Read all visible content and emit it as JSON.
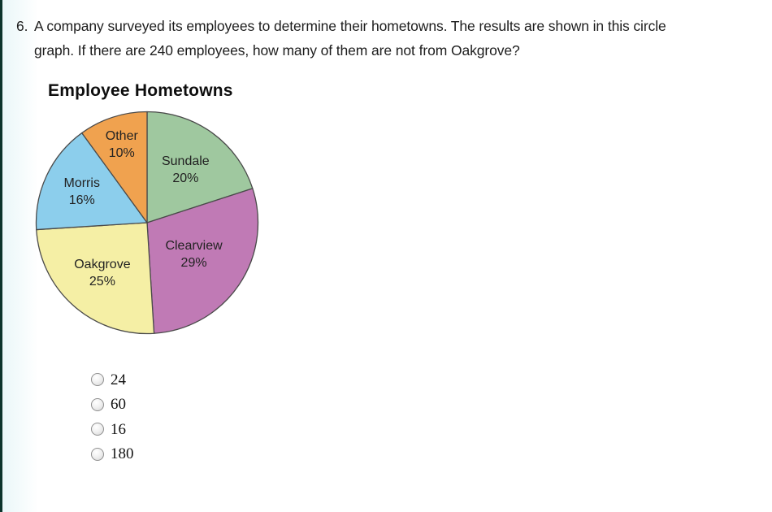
{
  "page": {
    "background": "#ffffff",
    "left_stripe_color": "#0c332c"
  },
  "question": {
    "number": "6.",
    "lines": [
      "A company surveyed its employees to determine their hometowns. The results are shown in this circle",
      "graph. If there are 240 employees, how many of them are not from Oakgrove?"
    ],
    "full_text": "A company surveyed its employees to determine their hometowns. The results are shown in this circle graph. If there are 240 employees, how many of them are not from Oakgrove?"
  },
  "chart_data": {
    "type": "pie",
    "title": "Employee Hometowns",
    "series": [
      {
        "label": "Sundale",
        "value": 20,
        "color": "#9fc89f"
      },
      {
        "label": "Clearview",
        "value": 29,
        "color": "#c07ab5"
      },
      {
        "label": "Oakgrove",
        "value": 25,
        "color": "#f5efa5"
      },
      {
        "label": "Morris",
        "value": 16,
        "color": "#8cceec"
      },
      {
        "label": "Other",
        "value": 10,
        "color": "#f0a24f"
      }
    ],
    "start_angle_deg": 0,
    "direction": "clockwise",
    "stroke_color": "#4a4a4a",
    "value_suffix": "%",
    "legend": "none"
  },
  "options": [
    {
      "label": "24",
      "selected": false
    },
    {
      "label": "60",
      "selected": false
    },
    {
      "label": "16",
      "selected": false
    },
    {
      "label": "180",
      "selected": false
    }
  ]
}
